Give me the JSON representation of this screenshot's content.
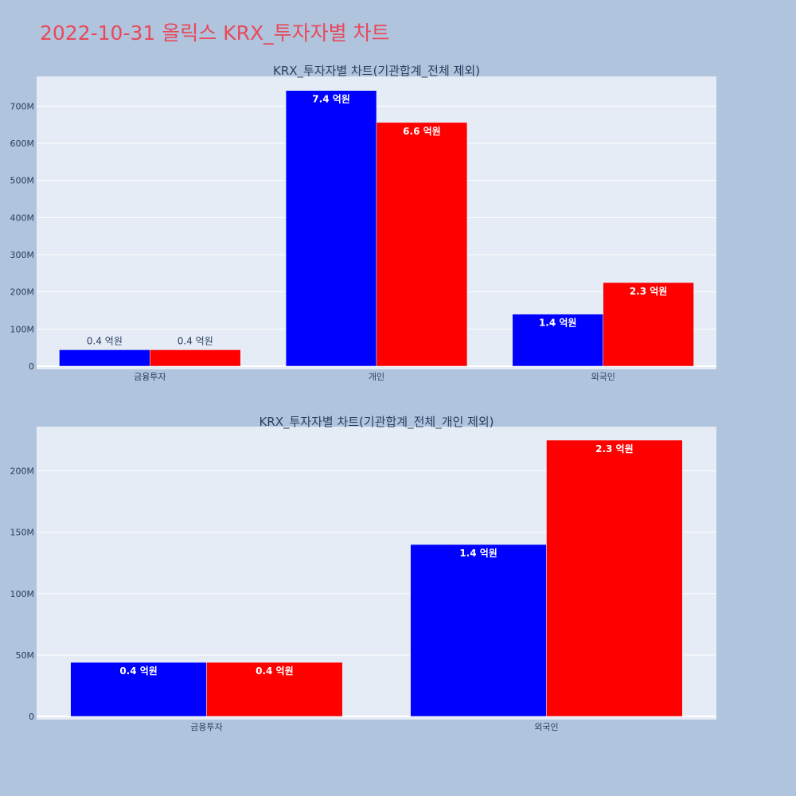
{
  "page": {
    "title": "2022-10-31 올릭스 KRX_투자자별 차트"
  },
  "colors": {
    "background": "#b0c4de",
    "plot_bg": "#e5ecf6",
    "grid": "#ffffff",
    "title": "#e8495a",
    "text": "#2a3f5f",
    "series_a": "#0000ff",
    "series_b": "#ff0000"
  },
  "chart_data": [
    {
      "type": "bar",
      "title": "KRX_투자자별 차트(기관합계_전체 제외)",
      "categories": [
        "금융투자",
        "개인",
        "외국인"
      ],
      "series": [
        {
          "color": "#0000ff",
          "values": [
            44000000,
            742000000,
            140000000
          ],
          "labels": [
            "0.4 억원",
            "7.4 억원",
            "1.4 억원"
          ]
        },
        {
          "color": "#ff0000",
          "values": [
            44000000,
            656000000,
            225000000
          ],
          "labels": [
            "0.4 억원",
            "6.6 억원",
            "2.3 억원"
          ]
        }
      ],
      "ylim": [
        0,
        780000000
      ],
      "yticks": [
        0,
        100000000,
        200000000,
        300000000,
        400000000,
        500000000,
        600000000,
        700000000
      ],
      "ytick_labels": [
        "0",
        "100M",
        "200M",
        "300M",
        "400M",
        "500M",
        "600M",
        "700M"
      ],
      "grid": true
    },
    {
      "type": "bar",
      "title": "KRX_투자자별 차트(기관합계_전체_개인 제외)",
      "categories": [
        "금융투자",
        "외국인"
      ],
      "series": [
        {
          "color": "#0000ff",
          "values": [
            44000000,
            140000000
          ],
          "labels": [
            "0.4 억원",
            "1.4 억원"
          ]
        },
        {
          "color": "#ff0000",
          "values": [
            44000000,
            225000000
          ],
          "labels": [
            "0.4 억원",
            "2.3 억원"
          ]
        }
      ],
      "ylim": [
        0,
        236000000
      ],
      "yticks": [
        0,
        50000000,
        100000000,
        150000000,
        200000000
      ],
      "ytick_labels": [
        "0",
        "50M",
        "100M",
        "150M",
        "200M"
      ],
      "grid": true
    }
  ]
}
